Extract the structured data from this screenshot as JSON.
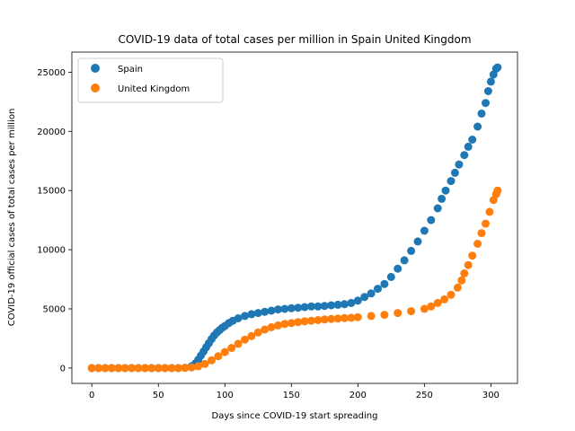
{
  "colors": {
    "spain": "#1f77b4",
    "uk": "#ff7f0e",
    "axis": "#000000",
    "background": "#ffffff"
  },
  "chart_data": {
    "type": "scatter",
    "title": "COVID-19 data of total cases per million in Spain United Kingdom",
    "xlabel": "Days since COVID-19 start spreading",
    "ylabel": "COVID-19 official cases of total cases per million",
    "xlim": [
      -15,
      320
    ],
    "ylim": [
      -1300,
      26700
    ],
    "xticks": [
      0,
      50,
      100,
      150,
      200,
      250,
      300
    ],
    "yticks": [
      0,
      5000,
      10000,
      15000,
      20000,
      25000
    ],
    "grid": false,
    "legend_position": "top-left",
    "series": [
      {
        "name": "Spain",
        "color": "#1f77b4",
        "x": [
          0,
          5,
          10,
          15,
          20,
          25,
          30,
          35,
          40,
          45,
          50,
          55,
          60,
          65,
          70,
          75,
          78,
          80,
          82,
          84,
          86,
          88,
          90,
          92,
          94,
          96,
          98,
          100,
          103,
          106,
          110,
          115,
          120,
          125,
          130,
          135,
          140,
          145,
          150,
          155,
          160,
          165,
          170,
          175,
          180,
          185,
          190,
          195,
          200,
          205,
          210,
          215,
          220,
          225,
          230,
          235,
          240,
          245,
          250,
          255,
          260,
          263,
          266,
          270,
          273,
          276,
          280,
          283,
          286,
          290,
          293,
          296,
          298,
          300,
          302,
          304,
          305
        ],
        "y": [
          0,
          0,
          0,
          0,
          0,
          0,
          0,
          0,
          0,
          0,
          0,
          0,
          0,
          0,
          20,
          150,
          400,
          700,
          1050,
          1400,
          1750,
          2100,
          2450,
          2750,
          3000,
          3200,
          3400,
          3550,
          3800,
          4000,
          4200,
          4400,
          4550,
          4650,
          4750,
          4850,
          4950,
          5000,
          5050,
          5100,
          5150,
          5200,
          5200,
          5250,
          5300,
          5350,
          5400,
          5500,
          5700,
          6000,
          6300,
          6700,
          7100,
          7700,
          8400,
          9100,
          9900,
          10700,
          11600,
          12500,
          13500,
          14300,
          15000,
          15800,
          16500,
          17200,
          18000,
          18700,
          19300,
          20400,
          21500,
          22400,
          23400,
          24200,
          24800,
          25300,
          25400
        ]
      },
      {
        "name": "United Kingdom",
        "color": "#ff7f0e",
        "x": [
          0,
          5,
          10,
          15,
          20,
          25,
          30,
          35,
          40,
          45,
          50,
          55,
          60,
          65,
          70,
          75,
          80,
          85,
          90,
          95,
          100,
          105,
          110,
          115,
          120,
          125,
          130,
          135,
          140,
          145,
          150,
          155,
          160,
          165,
          170,
          175,
          180,
          185,
          190,
          195,
          200,
          210,
          220,
          230,
          240,
          250,
          255,
          260,
          265,
          270,
          275,
          278,
          280,
          283,
          286,
          290,
          293,
          296,
          299,
          302,
          304,
          305
        ],
        "y": [
          0,
          0,
          0,
          0,
          0,
          0,
          0,
          0,
          0,
          0,
          0,
          0,
          0,
          0,
          10,
          50,
          150,
          350,
          650,
          1000,
          1350,
          1700,
          2050,
          2400,
          2700,
          3000,
          3250,
          3450,
          3600,
          3720,
          3800,
          3880,
          3950,
          4000,
          4050,
          4100,
          4150,
          4180,
          4220,
          4250,
          4300,
          4400,
          4500,
          4650,
          4800,
          5000,
          5200,
          5500,
          5800,
          6200,
          6800,
          7400,
          8000,
          8700,
          9500,
          10500,
          11400,
          12200,
          13200,
          14200,
          14700,
          15000
        ]
      }
    ]
  }
}
